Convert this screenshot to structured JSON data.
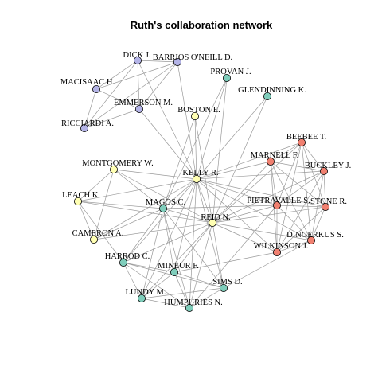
{
  "title": "Ruth's collaboration network",
  "group_colors": {
    "purple": "#B3B3E6",
    "teal": "#7FCDBB",
    "yellow": "#FFFFB3",
    "red": "#F08070"
  },
  "nodes": [
    {
      "id": "dick",
      "label": "DICK J.",
      "group": "purple"
    },
    {
      "id": "barrios",
      "label": "BARRIOS O'NEILL D.",
      "group": "purple"
    },
    {
      "id": "macisaac",
      "label": "MACISAAC H.",
      "group": "purple"
    },
    {
      "id": "emmerson",
      "label": "EMMERSON M.",
      "group": "purple"
    },
    {
      "id": "ricciardi",
      "label": "RICCIARDI A.",
      "group": "purple"
    },
    {
      "id": "provan",
      "label": "PROVAN J.",
      "group": "teal"
    },
    {
      "id": "glendinning",
      "label": "GLENDINNING K.",
      "group": "teal"
    },
    {
      "id": "boston",
      "label": "BOSTON E.",
      "group": "yellow"
    },
    {
      "id": "beebee",
      "label": "BEEBEE T.",
      "group": "red"
    },
    {
      "id": "marnell",
      "label": "MARNELL F.",
      "group": "red"
    },
    {
      "id": "buckley",
      "label": "BUCKLEY J.",
      "group": "red"
    },
    {
      "id": "montgomery",
      "label": "MONTGOMERY W.",
      "group": "yellow"
    },
    {
      "id": "kelly",
      "label": "KELLY R.",
      "group": "yellow"
    },
    {
      "id": "pietravalle",
      "label": "PIETRAVALLE S.",
      "group": "red"
    },
    {
      "id": "stone",
      "label": "STONE R.",
      "group": "red"
    },
    {
      "id": "leach",
      "label": "LEACH K.",
      "group": "yellow"
    },
    {
      "id": "maggs",
      "label": "MAGGS C.",
      "group": "teal"
    },
    {
      "id": "reid",
      "label": "REID N.",
      "group": "yellow"
    },
    {
      "id": "dingerkus",
      "label": "DINGERKUS S.",
      "group": "red"
    },
    {
      "id": "cameron",
      "label": "CAMERON A.",
      "group": "yellow"
    },
    {
      "id": "wilkinson",
      "label": "WILKINSON J.",
      "group": "red"
    },
    {
      "id": "harrod",
      "label": "HARROD C.",
      "group": "teal"
    },
    {
      "id": "mineur",
      "label": "MINEUR F.",
      "group": "teal"
    },
    {
      "id": "sims",
      "label": "SIMS D.",
      "group": "teal"
    },
    {
      "id": "lundy",
      "label": "LUNDY M.",
      "group": "teal"
    },
    {
      "id": "humphries",
      "label": "HUMPHRIES N.",
      "group": "teal"
    }
  ],
  "edges": [
    [
      "dick",
      "barrios"
    ],
    [
      "dick",
      "macisaac"
    ],
    [
      "dick",
      "emmerson"
    ],
    [
      "dick",
      "ricciardi"
    ],
    [
      "dick",
      "kelly"
    ],
    [
      "barrios",
      "macisaac"
    ],
    [
      "barrios",
      "emmerson"
    ],
    [
      "barrios",
      "ricciardi"
    ],
    [
      "barrios",
      "kelly"
    ],
    [
      "macisaac",
      "emmerson"
    ],
    [
      "macisaac",
      "ricciardi"
    ],
    [
      "emmerson",
      "ricciardi"
    ],
    [
      "emmerson",
      "kelly"
    ],
    [
      "provan",
      "kelly"
    ],
    [
      "provan",
      "reid"
    ],
    [
      "provan",
      "maggs"
    ],
    [
      "glendinning",
      "kelly"
    ],
    [
      "glendinning",
      "reid"
    ],
    [
      "boston",
      "kelly"
    ],
    [
      "boston",
      "reid"
    ],
    [
      "boston",
      "maggs"
    ],
    [
      "kelly",
      "beebee"
    ],
    [
      "kelly",
      "marnell"
    ],
    [
      "kelly",
      "buckley"
    ],
    [
      "kelly",
      "pietravalle"
    ],
    [
      "kelly",
      "stone"
    ],
    [
      "kelly",
      "dingerkus"
    ],
    [
      "kelly",
      "wilkinson"
    ],
    [
      "kelly",
      "montgomery"
    ],
    [
      "kelly",
      "leach"
    ],
    [
      "kelly",
      "maggs"
    ],
    [
      "kelly",
      "reid"
    ],
    [
      "kelly",
      "cameron"
    ],
    [
      "kelly",
      "harrod"
    ],
    [
      "kelly",
      "mineur"
    ],
    [
      "kelly",
      "sims"
    ],
    [
      "kelly",
      "lundy"
    ],
    [
      "kelly",
      "humphries"
    ],
    [
      "reid",
      "beebee"
    ],
    [
      "reid",
      "marnell"
    ],
    [
      "reid",
      "buckley"
    ],
    [
      "reid",
      "pietravalle"
    ],
    [
      "reid",
      "stone"
    ],
    [
      "reid",
      "dingerkus"
    ],
    [
      "reid",
      "wilkinson"
    ],
    [
      "reid",
      "montgomery"
    ],
    [
      "reid",
      "leach"
    ],
    [
      "reid",
      "maggs"
    ],
    [
      "reid",
      "cameron"
    ],
    [
      "reid",
      "harrod"
    ],
    [
      "reid",
      "mineur"
    ],
    [
      "reid",
      "sims"
    ],
    [
      "reid",
      "lundy"
    ],
    [
      "reid",
      "humphries"
    ],
    [
      "maggs",
      "leach"
    ],
    [
      "maggs",
      "cameron"
    ],
    [
      "maggs",
      "harrod"
    ],
    [
      "maggs",
      "mineur"
    ],
    [
      "maggs",
      "sims"
    ],
    [
      "maggs",
      "lundy"
    ],
    [
      "maggs",
      "humphries"
    ],
    [
      "maggs",
      "montgomery"
    ],
    [
      "maggs",
      "pietravalle"
    ],
    [
      "montgomery",
      "leach"
    ],
    [
      "montgomery",
      "cameron"
    ],
    [
      "leach",
      "cameron"
    ],
    [
      "leach",
      "harrod"
    ],
    [
      "harrod",
      "mineur"
    ],
    [
      "harrod",
      "lundy"
    ],
    [
      "harrod",
      "humphries"
    ],
    [
      "harrod",
      "sims"
    ],
    [
      "mineur",
      "sims"
    ],
    [
      "mineur",
      "lundy"
    ],
    [
      "mineur",
      "humphries"
    ],
    [
      "lundy",
      "humphries"
    ],
    [
      "lundy",
      "sims"
    ],
    [
      "sims",
      "humphries"
    ],
    [
      "beebee",
      "marnell"
    ],
    [
      "beebee",
      "buckley"
    ],
    [
      "beebee",
      "pietravalle"
    ],
    [
      "beebee",
      "stone"
    ],
    [
      "beebee",
      "dingerkus"
    ],
    [
      "beebee",
      "wilkinson"
    ],
    [
      "marnell",
      "buckley"
    ],
    [
      "marnell",
      "pietravalle"
    ],
    [
      "marnell",
      "stone"
    ],
    [
      "marnell",
      "dingerkus"
    ],
    [
      "marnell",
      "wilkinson"
    ],
    [
      "buckley",
      "pietravalle"
    ],
    [
      "buckley",
      "stone"
    ],
    [
      "buckley",
      "dingerkus"
    ],
    [
      "buckley",
      "wilkinson"
    ],
    [
      "pietravalle",
      "stone"
    ],
    [
      "pietravalle",
      "dingerkus"
    ],
    [
      "pietravalle",
      "wilkinson"
    ],
    [
      "stone",
      "dingerkus"
    ],
    [
      "stone",
      "wilkinson"
    ],
    [
      "dingerkus",
      "wilkinson"
    ],
    [
      "wilkinson",
      "mineur"
    ],
    [
      "dingerkus",
      "sims"
    ],
    [
      "pietravalle",
      "humphries"
    ]
  ]
}
